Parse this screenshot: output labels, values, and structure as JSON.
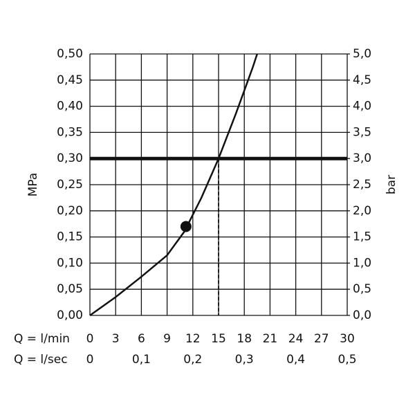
{
  "chart_data": {
    "type": "line",
    "ylabel": "MPa",
    "y2label": "bar",
    "xlabel": "Q = l/min",
    "x2label": "Q = l/sec",
    "x": [
      0,
      3,
      6,
      9,
      11,
      13,
      15,
      17,
      19,
      19.5
    ],
    "series": [
      {
        "color": "#111111",
        "values": [
          0,
          0.035,
          0.074,
          0.115,
          0.16,
          0.225,
          0.3,
          0.385,
          0.475,
          0.5
        ]
      }
    ],
    "marker": {
      "x": 11.2,
      "y": 0.17
    },
    "reference_y": 0.3,
    "reference_x": 15,
    "xlim": [
      0,
      30
    ],
    "xticks": [
      0,
      3,
      6,
      9,
      12,
      15,
      18,
      21,
      24,
      27,
      30
    ],
    "x2lim": [
      0,
      0.5
    ],
    "x2ticks": [
      0,
      {
        "value": 0.1,
        "label": "0,1"
      },
      {
        "value": 0.2,
        "label": "0,2"
      },
      {
        "value": 0.3,
        "label": "0,3"
      },
      {
        "value": 0.4,
        "label": "0,4"
      },
      {
        "value": 0.5,
        "label": "0,5"
      }
    ],
    "ylim": [
      0,
      0.5
    ],
    "yticks": [
      {
        "value": 0,
        "label": "0,00"
      },
      {
        "value": 0.05,
        "label": "0,05"
      },
      {
        "value": 0.1,
        "label": "0,10"
      },
      {
        "value": 0.15,
        "label": "0,15"
      },
      {
        "value": 0.2,
        "label": "0,20"
      },
      {
        "value": 0.25,
        "label": "0,25"
      },
      {
        "value": 0.3,
        "label": "0,30"
      },
      {
        "value": 0.35,
        "label": "0,35"
      },
      {
        "value": 0.4,
        "label": "0,40"
      },
      {
        "value": 0.45,
        "label": "0,45"
      },
      {
        "value": 0.5,
        "label": "0,50"
      }
    ],
    "y2lim": [
      0,
      5
    ],
    "y2ticks": [
      {
        "value": 0,
        "label": "0,0"
      },
      {
        "value": 0.5,
        "label": "0,5"
      },
      {
        "value": 1,
        "label": "1,0"
      },
      {
        "value": 1.5,
        "label": "1,5"
      },
      {
        "value": 2,
        "label": "2,0"
      },
      {
        "value": 2.5,
        "label": "2,5"
      },
      {
        "value": 3,
        "label": "3,0"
      },
      {
        "value": 3.5,
        "label": "3,5"
      },
      {
        "value": 4,
        "label": "4,0"
      },
      {
        "value": 4.5,
        "label": "4,5"
      },
      {
        "value": 5,
        "label": "5,0"
      }
    ],
    "grid": true
  }
}
